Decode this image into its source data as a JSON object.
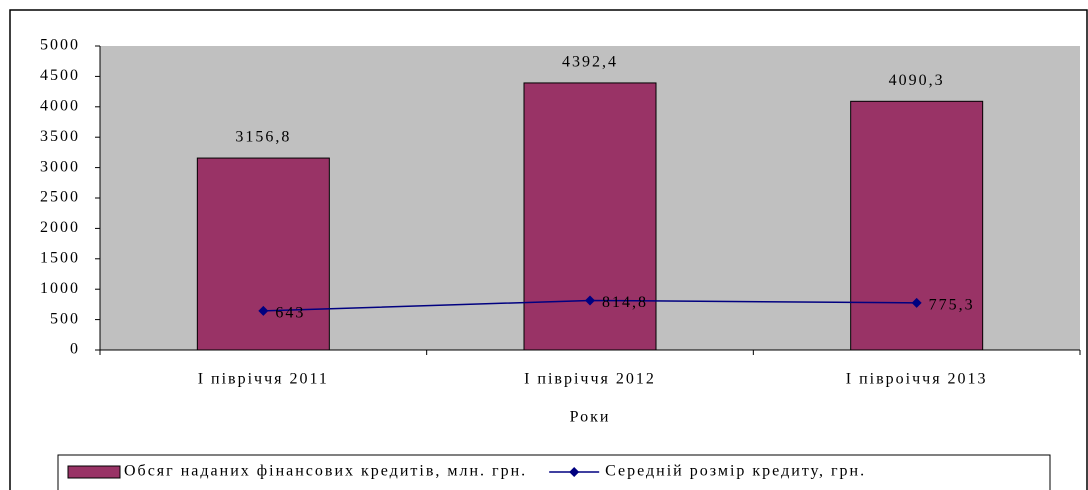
{
  "chart_data": {
    "type": "bar",
    "x_label": "Роки",
    "categories": [
      "І півріччя 2011",
      "І півріччя 2012",
      "І півроіччя 2013"
    ],
    "series": [
      {
        "name": "Обсяг наданих фінансових кредитів, млн. грн.",
        "type": "bar",
        "color": "#993366",
        "values": [
          3156.8,
          4392.4,
          4090.3
        ],
        "value_labels": [
          "3156,8",
          "4392,4",
          "4090,3"
        ]
      },
      {
        "name": "Середній розмір кредиту, грн.",
        "type": "line",
        "color": "#000080",
        "values": [
          643,
          814.8,
          775.3
        ],
        "value_labels": [
          "643",
          "814,8",
          "775,3"
        ]
      }
    ],
    "ylim": [
      0,
      5000
    ],
    "yticks": [
      0,
      500,
      1000,
      1500,
      2000,
      2500,
      3000,
      3500,
      4000,
      4500,
      5000
    ],
    "grid": false,
    "legend": "bottom",
    "plot_background": "#c0c0c0"
  }
}
